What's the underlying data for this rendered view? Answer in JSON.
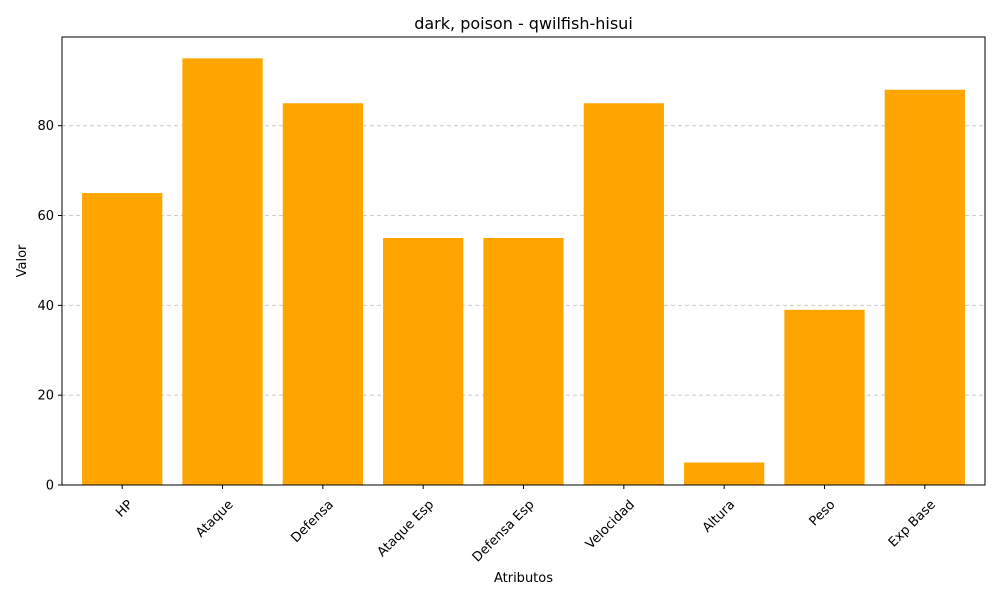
{
  "chart_data": {
    "type": "bar",
    "title": "dark, poison - qwilfish-hisui",
    "xlabel": "Atributos",
    "ylabel": "Valor",
    "categories": [
      "HP",
      "Ataque",
      "Defensa",
      "Ataque Esp",
      "Defensa Esp",
      "Velocidad",
      "Altura",
      "Peso",
      "Exp Base"
    ],
    "values": [
      65,
      95,
      85,
      55,
      55,
      85,
      5,
      39,
      88
    ],
    "ylim": [
      0,
      99.75
    ],
    "yticks": [
      0,
      20,
      40,
      60,
      80
    ],
    "bar_color": "#FFA500",
    "grid": "y-dashed"
  }
}
